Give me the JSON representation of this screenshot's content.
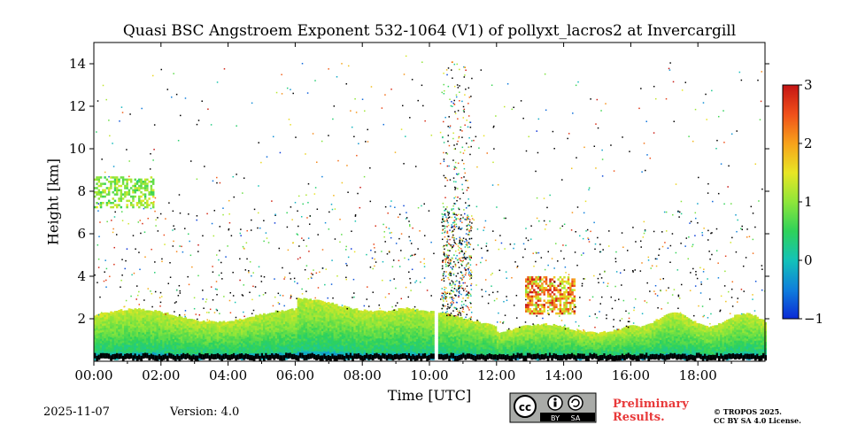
{
  "chart_data": {
    "type": "heatmap",
    "title": "Quasi BSC Angstroem Exponent 532-1064 (V1) of pollyxt_lacros2 at Invercargill",
    "xlabel": "Time [UTC]",
    "ylabel": "Height [km]",
    "x_tick_labels": [
      "00:00",
      "02:00",
      "04:00",
      "06:00",
      "08:00",
      "10:00",
      "12:00",
      "14:00",
      "16:00",
      "18:00"
    ],
    "x_range_hours": [
      0,
      20
    ],
    "y_tick_labels": [
      "2",
      "4",
      "6",
      "8",
      "10",
      "12",
      "14"
    ],
    "y_ticks": [
      2,
      4,
      6,
      8,
      10,
      12,
      14
    ],
    "ylim": [
      0,
      15
    ],
    "colorbar": {
      "ticks": [
        "3",
        "2",
        "1",
        "0",
        "−1"
      ],
      "tick_values": [
        3,
        2,
        1,
        0,
        -1
      ],
      "range": [
        -1,
        3
      ],
      "colormap": [
        "#0b2ad6",
        "#0f7fdc",
        "#13c2b8",
        "#2fd25a",
        "#8ee63a",
        "#e8e624",
        "#f7a21b",
        "#f0501a",
        "#c41414"
      ]
    },
    "series": [
      {
        "name": "boundary layer",
        "value_range": [
          0.2,
          1.4
        ]
      },
      {
        "name": "gap 10:08-10:15",
        "start_h": 10.13,
        "end_h": 10.25
      },
      {
        "name": "lofted layer 12:50-14:20",
        "height_km": [
          2.2,
          4.0
        ],
        "value_range": [
          1.0,
          3.0
        ]
      },
      {
        "name": "cloud layer 00:00-01:45",
        "height_km": [
          7.2,
          8.6
        ],
        "value_range": [
          0.5,
          1.5
        ]
      }
    ]
  },
  "footer": {
    "date": "2025-11-07",
    "version": "Version: 4.0",
    "preliminary_line1": "Preliminary",
    "preliminary_line2": "Results.",
    "copyright_line1": "© TROPOS 2025.",
    "copyright_line2": "CC BY SA 4.0 License.",
    "license_badge": {
      "cc": "cc",
      "by": "BY",
      "sa": "SA"
    }
  }
}
